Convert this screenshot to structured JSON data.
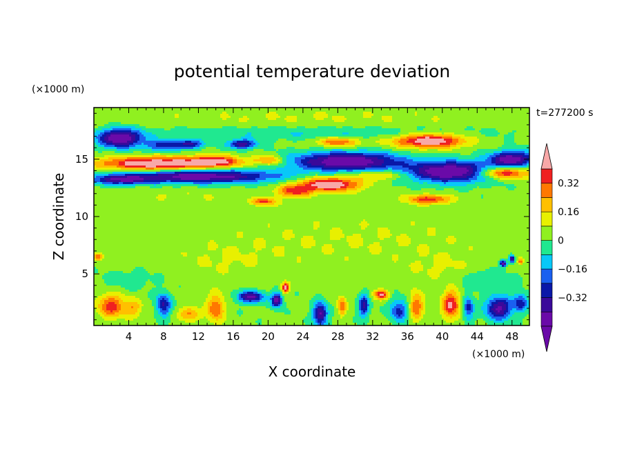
{
  "chart_data": {
    "type": "heatmap",
    "title": "potential temperature deviation",
    "xlabel": "X coordinate",
    "ylabel": "Z coordinate",
    "x_unit": "(×1000 m)",
    "y_unit": "(×1000 m)",
    "time_label": "t=277200 s",
    "xlim": [
      0,
      50
    ],
    "ylim": [
      0.5,
      19.5
    ],
    "x_ticks": [
      4,
      8,
      12,
      16,
      20,
      24,
      28,
      32,
      36,
      40,
      44,
      48
    ],
    "y_ticks": [
      5,
      10,
      15
    ],
    "colorbar": {
      "levels": [
        -0.48,
        -0.4,
        -0.32,
        -0.24,
        -0.16,
        -0.08,
        0,
        0.08,
        0.16,
        0.24,
        0.32,
        0.4
      ],
      "colors": [
        "#6a0aa8",
        "#3a0a9a",
        "#0a18a8",
        "#1a60f0",
        "#08c8f8",
        "#20e890",
        "#90f020",
        "#e8f000",
        "#ffc000",
        "#ff7800",
        "#f02020",
        "#ffb0b0"
      ],
      "under_color": "#6a0aa8",
      "over_color": "#f8a8a8",
      "tick_values": [
        -0.32,
        -0.16,
        0,
        0.16,
        0.32
      ],
      "tick_labels": [
        "−0.32",
        "−0.16",
        "0",
        "0.16",
        "0.32"
      ]
    },
    "background_value": 0.02,
    "features": [
      {
        "x": 3,
        "z": 16.8,
        "sx": 2.5,
        "sz": 0.8,
        "v": -0.52
      },
      {
        "x": 8,
        "z": 16.2,
        "sx": 2,
        "sz": 0.5,
        "v": -0.3
      },
      {
        "x": 11,
        "z": 16.3,
        "sx": 1.5,
        "sz": 0.4,
        "v": -0.35
      },
      {
        "x": 17,
        "z": 16.3,
        "sx": 1.6,
        "sz": 0.4,
        "v": -0.4
      },
      {
        "x": 7,
        "z": 14.6,
        "sx": 6.5,
        "sz": 0.6,
        "v": 0.5
      },
      {
        "x": 14,
        "z": 14.8,
        "sx": 3,
        "sz": 0.5,
        "v": 0.35
      },
      {
        "x": 20,
        "z": 14.9,
        "sx": 1.8,
        "sz": 0.4,
        "v": 0.25
      },
      {
        "x": 12,
        "z": 13.5,
        "sx": 9,
        "sz": 0.6,
        "v": -0.5
      },
      {
        "x": 3,
        "z": 13.2,
        "sx": 3,
        "sz": 0.4,
        "v": -0.35
      },
      {
        "x": 29,
        "z": 14.8,
        "sx": 6,
        "sz": 0.8,
        "v": -0.55
      },
      {
        "x": 41,
        "z": 13.9,
        "sx": 5,
        "sz": 0.9,
        "v": -0.55
      },
      {
        "x": 48,
        "z": 15,
        "sx": 2.5,
        "sz": 0.7,
        "v": -0.5
      },
      {
        "x": 38.5,
        "z": 16.6,
        "sx": 4,
        "sz": 0.6,
        "v": 0.5
      },
      {
        "x": 28,
        "z": 16.5,
        "sx": 2.5,
        "sz": 0.4,
        "v": 0.3
      },
      {
        "x": 47,
        "z": 13.8,
        "sx": 3,
        "sz": 0.5,
        "v": 0.45
      },
      {
        "x": 27,
        "z": 12.8,
        "sx": 3.5,
        "sz": 0.6,
        "v": 0.5
      },
      {
        "x": 23,
        "z": 12.2,
        "sx": 2,
        "sz": 0.5,
        "v": 0.32
      },
      {
        "x": 19.5,
        "z": 11.3,
        "sx": 1.5,
        "sz": 0.3,
        "v": 0.3
      },
      {
        "x": 38.5,
        "z": 11.5,
        "sx": 2.5,
        "sz": 0.4,
        "v": 0.35
      },
      {
        "x": 33,
        "z": 13.6,
        "sx": 3,
        "sz": 0.4,
        "v": 0.2
      },
      {
        "x": 25,
        "z": 17.3,
        "sx": 20,
        "sz": 0.6,
        "v": -0.1
      },
      {
        "x": 25,
        "z": 18.6,
        "sx": 25,
        "sz": 0.9,
        "v": 0.06
      },
      {
        "x": 10,
        "z": 11.8,
        "sx": 8,
        "sz": 0.8,
        "v": 0.05
      },
      {
        "x": 30,
        "z": 8,
        "sx": 20,
        "sz": 2.5,
        "v": 0.06
      },
      {
        "x": 15,
        "z": 6,
        "sx": 6,
        "sz": 1.5,
        "v": 0.05
      },
      {
        "x": 40,
        "z": 5.5,
        "sx": 4,
        "sz": 1.2,
        "v": 0.06
      },
      {
        "x": 45,
        "z": 4.5,
        "sx": 3,
        "sz": 1,
        "v": -0.1
      },
      {
        "x": 4,
        "z": 4.5,
        "sx": 3,
        "sz": 0.8,
        "v": -0.08
      },
      {
        "x": 2,
        "z": 2.2,
        "sx": 1.5,
        "sz": 1,
        "v": 0.35
      },
      {
        "x": 4.5,
        "z": 2,
        "sx": 1,
        "sz": 0.8,
        "v": 0.2
      },
      {
        "x": 8,
        "z": 2.3,
        "sx": 0.8,
        "sz": 1,
        "v": -0.35
      },
      {
        "x": 11,
        "z": 1.5,
        "sx": 1.2,
        "sz": 0.6,
        "v": 0.25
      },
      {
        "x": 14,
        "z": 2,
        "sx": 1,
        "sz": 1.2,
        "v": 0.3
      },
      {
        "x": 18,
        "z": 3,
        "sx": 1.5,
        "sz": 0.5,
        "v": -0.45
      },
      {
        "x": 21,
        "z": 2.7,
        "sx": 0.6,
        "sz": 0.6,
        "v": -0.5
      },
      {
        "x": 22,
        "z": 3.8,
        "sx": 0.4,
        "sz": 0.4,
        "v": 0.5
      },
      {
        "x": 26,
        "z": 1.5,
        "sx": 0.8,
        "sz": 1,
        "v": -0.45
      },
      {
        "x": 28.5,
        "z": 2.2,
        "sx": 0.5,
        "sz": 0.8,
        "v": 0.3
      },
      {
        "x": 31,
        "z": 2.2,
        "sx": 0.6,
        "sz": 1,
        "v": -0.35
      },
      {
        "x": 33,
        "z": 3.2,
        "sx": 0.8,
        "sz": 0.4,
        "v": 0.4
      },
      {
        "x": 35,
        "z": 1.8,
        "sx": 1,
        "sz": 1,
        "v": -0.3
      },
      {
        "x": 37,
        "z": 2.2,
        "sx": 0.8,
        "sz": 1.2,
        "v": 0.3
      },
      {
        "x": 41,
        "z": 2.3,
        "sx": 1,
        "sz": 1.2,
        "v": 0.4
      },
      {
        "x": 43,
        "z": 2,
        "sx": 0.6,
        "sz": 1,
        "v": -0.3
      },
      {
        "x": 46.5,
        "z": 2,
        "sx": 1.5,
        "sz": 1,
        "v": -0.45
      },
      {
        "x": 49,
        "z": 2.5,
        "sx": 0.8,
        "sz": 0.8,
        "v": -0.3
      },
      {
        "x": 0.5,
        "z": 6.5,
        "sx": 0.5,
        "sz": 0.3,
        "v": 0.32
      },
      {
        "x": 47,
        "z": 5.9,
        "sx": 0.4,
        "sz": 0.3,
        "v": -0.45
      },
      {
        "x": 48,
        "z": 6.3,
        "sx": 0.3,
        "sz": 0.3,
        "v": -0.5
      },
      {
        "x": 49,
        "z": 6.1,
        "sx": 0.3,
        "sz": 0.3,
        "v": 0.3
      }
    ]
  }
}
